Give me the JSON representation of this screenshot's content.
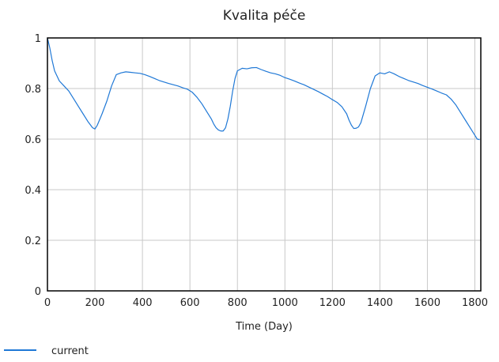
{
  "chart_data": {
    "type": "line",
    "title": "Kvalita péče",
    "xlabel": "Time (Day)",
    "ylabel": "",
    "xlim": [
      0,
      1825
    ],
    "ylim": [
      0,
      1
    ],
    "x_ticks": [
      0,
      200,
      400,
      600,
      800,
      1000,
      1200,
      1400,
      1600,
      1800
    ],
    "x_tick_labels": [
      "0",
      "200",
      "400",
      "600",
      "800",
      "1000",
      "1200",
      "1400",
      "1600",
      "1800"
    ],
    "y_ticks": [
      0,
      0.2,
      0.4,
      0.6,
      0.8,
      1
    ],
    "y_tick_labels": [
      "0",
      "0.2",
      "0.4",
      "0.6",
      "0.8",
      "1"
    ],
    "grid": true,
    "legend_position": "bottom-left",
    "series": [
      {
        "name": "current",
        "color": "#1f78d6",
        "x": [
          0,
          10,
          20,
          30,
          50,
          70,
          90,
          110,
          130,
          150,
          170,
          190,
          200,
          210,
          230,
          250,
          270,
          290,
          310,
          330,
          350,
          370,
          390,
          410,
          430,
          450,
          470,
          490,
          510,
          530,
          550,
          570,
          590,
          610,
          630,
          650,
          670,
          690,
          700,
          710,
          720,
          730,
          740,
          750,
          760,
          770,
          780,
          790,
          800,
          820,
          840,
          860,
          880,
          900,
          920,
          940,
          960,
          980,
          1000,
          1020,
          1040,
          1060,
          1080,
          1100,
          1120,
          1140,
          1160,
          1180,
          1200,
          1220,
          1240,
          1260,
          1270,
          1280,
          1290,
          1300,
          1310,
          1320,
          1340,
          1360,
          1380,
          1400,
          1420,
          1440,
          1460,
          1480,
          1500,
          1520,
          1540,
          1560,
          1580,
          1600,
          1620,
          1640,
          1660,
          1680,
          1700,
          1720,
          1740,
          1760,
          1780,
          1800,
          1810,
          1820
        ],
        "values": [
          1.0,
          0.96,
          0.91,
          0.87,
          0.83,
          0.81,
          0.79,
          0.76,
          0.73,
          0.7,
          0.67,
          0.645,
          0.64,
          0.655,
          0.7,
          0.75,
          0.81,
          0.855,
          0.862,
          0.866,
          0.864,
          0.862,
          0.86,
          0.855,
          0.848,
          0.84,
          0.832,
          0.826,
          0.82,
          0.815,
          0.81,
          0.803,
          0.797,
          0.785,
          0.765,
          0.74,
          0.71,
          0.68,
          0.66,
          0.645,
          0.636,
          0.632,
          0.632,
          0.645,
          0.68,
          0.73,
          0.79,
          0.84,
          0.87,
          0.88,
          0.878,
          0.882,
          0.883,
          0.875,
          0.868,
          0.862,
          0.858,
          0.852,
          0.843,
          0.837,
          0.83,
          0.822,
          0.815,
          0.806,
          0.797,
          0.788,
          0.778,
          0.768,
          0.756,
          0.745,
          0.728,
          0.7,
          0.675,
          0.655,
          0.642,
          0.643,
          0.648,
          0.665,
          0.73,
          0.8,
          0.85,
          0.862,
          0.858,
          0.866,
          0.858,
          0.848,
          0.84,
          0.832,
          0.826,
          0.82,
          0.812,
          0.805,
          0.798,
          0.79,
          0.782,
          0.775,
          0.758,
          0.735,
          0.705,
          0.675,
          0.645,
          0.615,
          0.6,
          0.598
        ]
      }
    ]
  }
}
